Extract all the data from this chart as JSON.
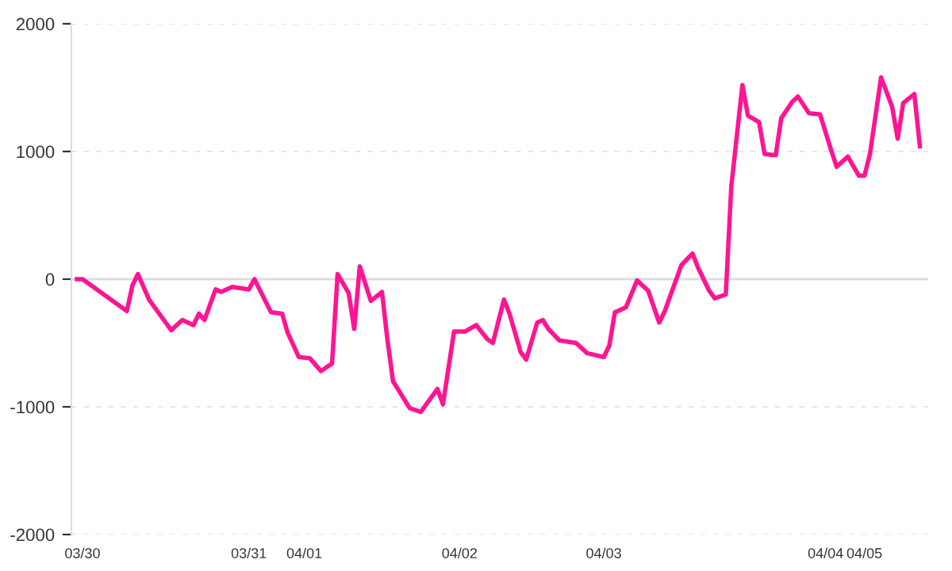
{
  "chart_data": {
    "type": "line",
    "categories": [
      null,
      "03/30",
      null,
      null,
      null,
      null,
      null,
      null,
      null,
      null,
      null,
      null,
      null,
      null,
      null,
      null,
      null,
      null,
      null,
      null,
      null,
      null,
      null,
      null,
      null,
      null,
      null,
      null,
      null,
      null,
      null,
      "03/31",
      null,
      null,
      null,
      null,
      null,
      null,
      null,
      null,
      null,
      "04/01",
      null,
      null,
      null,
      null,
      null,
      null,
      null,
      null,
      null,
      null,
      null,
      null,
      null,
      null,
      null,
      null,
      null,
      null,
      null,
      null,
      null,
      null,
      null,
      null,
      null,
      null,
      null,
      "04/02",
      null,
      null,
      null,
      null,
      null,
      null,
      null,
      null,
      null,
      null,
      null,
      null,
      null,
      null,
      null,
      null,
      null,
      null,
      null,
      null,
      null,
      null,
      null,
      null,
      null,
      "04/03",
      null,
      null,
      null,
      null,
      null,
      null,
      null,
      null,
      null,
      null,
      null,
      null,
      null,
      null,
      null,
      null,
      null,
      null,
      null,
      null,
      null,
      null,
      null,
      null,
      null,
      null,
      null,
      null,
      null,
      null,
      null,
      null,
      null,
      null,
      null,
      null,
      null,
      null,
      null,
      "04/04",
      null,
      null,
      null,
      null,
      null,
      null,
      "04/05",
      null,
      null,
      null,
      null,
      null,
      null,
      null,
      null,
      null,
      null,
      null
    ],
    "series": [
      {
        "color": "#ff1493",
        "values": [
          0,
          0,
          null,
          null,
          null,
          null,
          null,
          null,
          null,
          -250,
          -50,
          40,
          null,
          -160,
          null,
          null,
          null,
          -400,
          null,
          -320,
          null,
          -360,
          -270,
          -320,
          null,
          -80,
          -100,
          null,
          -60,
          null,
          null,
          -80,
          0,
          null,
          null,
          -260,
          null,
          -270,
          -420,
          null,
          -610,
          null,
          -620,
          null,
          -720,
          null,
          -660,
          40,
          null,
          -110,
          -390,
          100,
          null,
          -170,
          null,
          -100,
          -480,
          -800,
          null,
          null,
          -1010,
          null,
          -1040,
          null,
          null,
          -860,
          -980,
          null,
          -410,
          null,
          -410,
          null,
          -360,
          null,
          -470,
          -500,
          null,
          -160,
          -270,
          null,
          -570,
          -630,
          null,
          -340,
          -320,
          -390,
          null,
          -480,
          null,
          null,
          -500,
          null,
          -580,
          null,
          null,
          -610,
          -520,
          -260,
          null,
          -220,
          null,
          -10,
          null,
          -90,
          null,
          -340,
          -250,
          null,
          null,
          110,
          null,
          200,
          90,
          null,
          -90,
          -150,
          null,
          -120,
          730,
          null,
          1520,
          1280,
          null,
          1230,
          980,
          null,
          970,
          1260,
          null,
          1390,
          1430,
          null,
          1300,
          null,
          1290,
          null,
          1010,
          880,
          null,
          960,
          null,
          810,
          810,
          980,
          null,
          1580,
          null,
          1350,
          1100,
          1380,
          null,
          1450,
          1040,
          null
        ]
      }
    ],
    "ylim": [
      -2000,
      2000
    ],
    "yticks": [
      -2000,
      -1000,
      0,
      1000,
      2000
    ],
    "grid": "y",
    "ref_lines": [
      {
        "axis": "y",
        "value": 0,
        "color": "#dddddd",
        "line_style": "solid"
      }
    ]
  }
}
